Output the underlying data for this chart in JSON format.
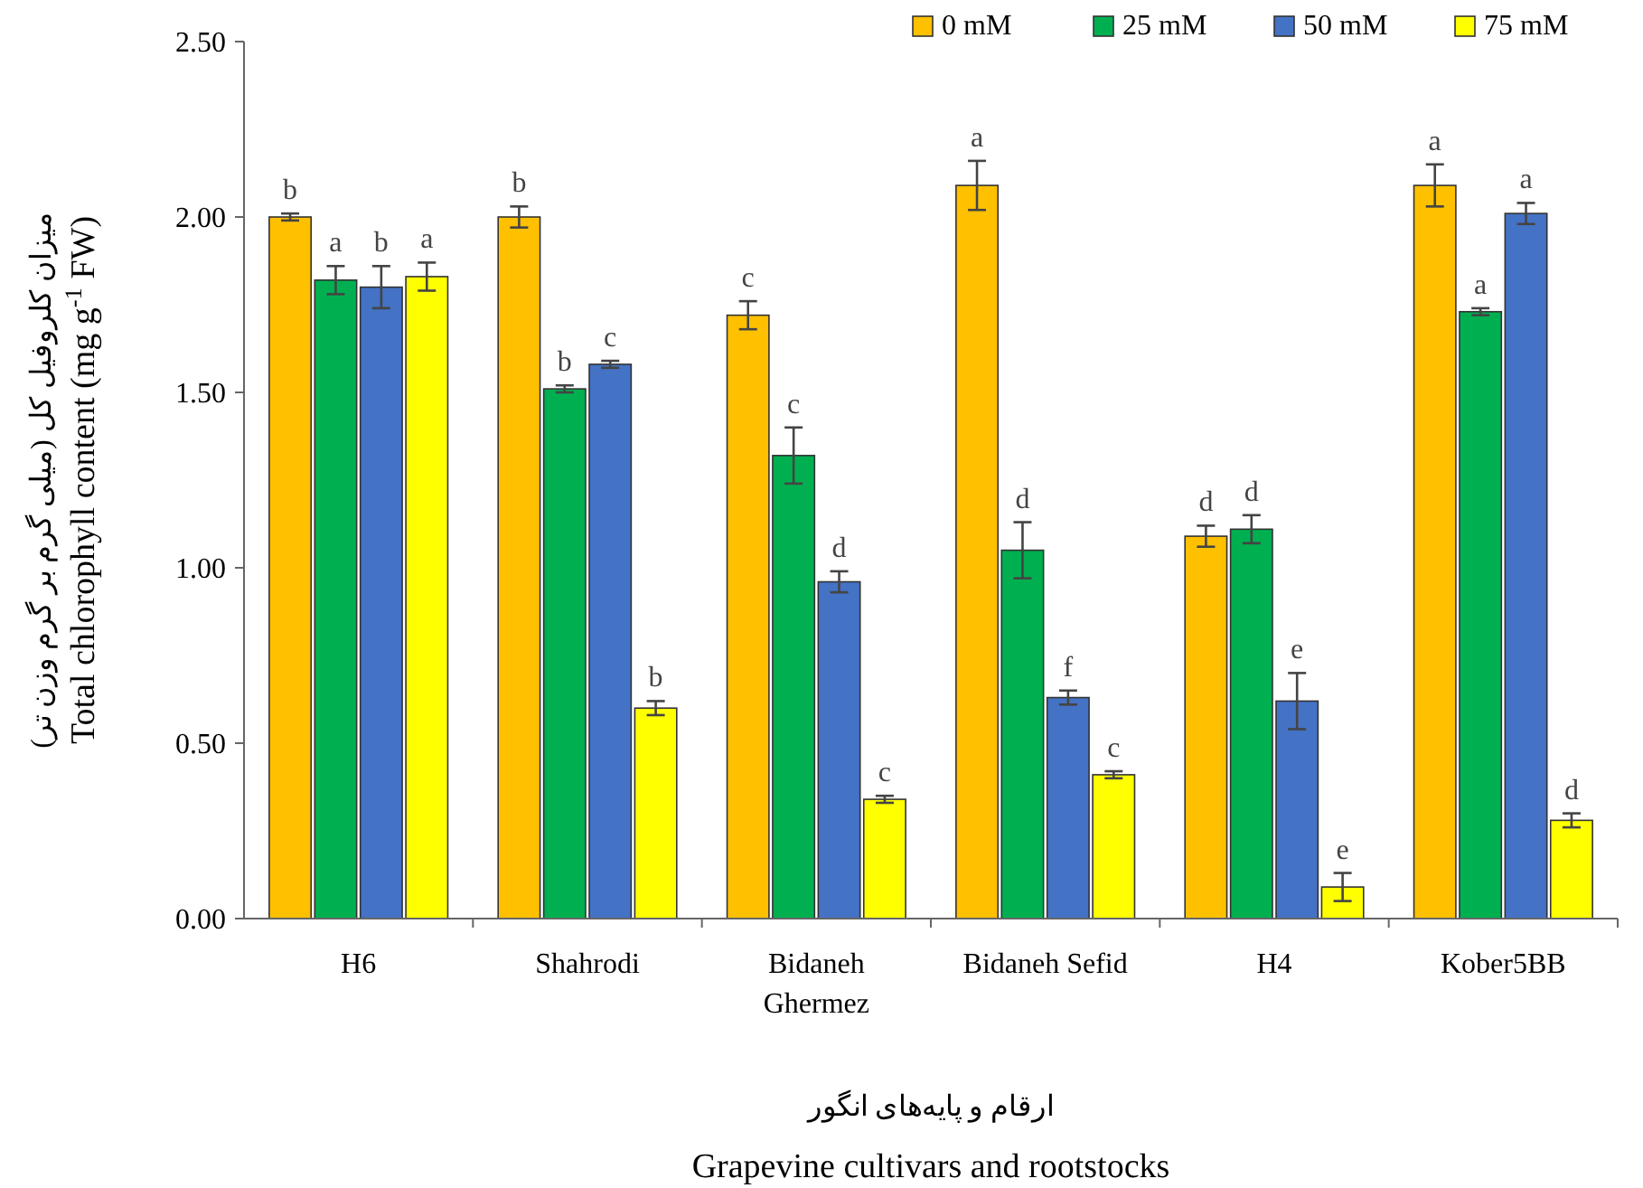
{
  "chart_data": {
    "type": "bar",
    "xlabel": "Grapevine cultivars and rootstocks",
    "ylabel": "Total chlorophyll content (mg g$^{-1}$ FW)",
    "annotations": [
      "ارقام و پایه‌های انگور",
      "میزان کلروفیل کل (میلی گرم بر گرم وزن تر)"
    ],
    "categories": [
      "H6",
      "Shahrodi",
      "Bidaneh Ghermez",
      "Bidaneh Sefid",
      "H4",
      "Kober5BB"
    ],
    "series": [
      {
        "name": "0 mM",
        "color": "#ffc000",
        "values": [
          2.0,
          2.0,
          1.72,
          2.09,
          1.09,
          2.09
        ],
        "errors": [
          0.01,
          0.03,
          0.04,
          0.07,
          0.03,
          0.06
        ],
        "value_labels": [
          "b",
          "b",
          "c",
          "a",
          "d",
          "a"
        ]
      },
      {
        "name": "25 mM",
        "color": "#00b050",
        "values": [
          1.82,
          1.51,
          1.32,
          1.05,
          1.11,
          1.73
        ],
        "errors": [
          0.04,
          0.01,
          0.08,
          0.08,
          0.04,
          0.01
        ],
        "value_labels": [
          "a",
          "b",
          "c",
          "d",
          "d",
          "a"
        ]
      },
      {
        "name": "50 mM",
        "color": "#4472c4",
        "values": [
          1.8,
          1.58,
          0.96,
          0.63,
          0.62,
          2.01
        ],
        "errors": [
          0.06,
          0.01,
          0.03,
          0.02,
          0.08,
          0.03
        ],
        "value_labels": [
          "b",
          "c",
          "d",
          "f",
          "e",
          "a"
        ]
      },
      {
        "name": "75 mM",
        "color": "#ffff00",
        "values": [
          1.83,
          0.6,
          0.34,
          0.41,
          0.09,
          0.28
        ],
        "errors": [
          0.04,
          0.02,
          0.01,
          0.01,
          0.04,
          0.02
        ],
        "value_labels": [
          "a",
          "b",
          "c",
          "c",
          "e",
          "d"
        ]
      }
    ],
    "ylim": [
      0,
      2.5
    ],
    "yticks": [
      {
        "value": 0,
        "label": "0.00"
      },
      {
        "value": 0.5,
        "label": "0.50"
      },
      {
        "value": 1,
        "label": "1.00"
      },
      {
        "value": 1.5,
        "label": "1.50"
      },
      {
        "value": 2,
        "label": "2.00"
      },
      {
        "value": 2.5,
        "label": "2.50"
      }
    ],
    "grid": false,
    "legend": "top right"
  }
}
